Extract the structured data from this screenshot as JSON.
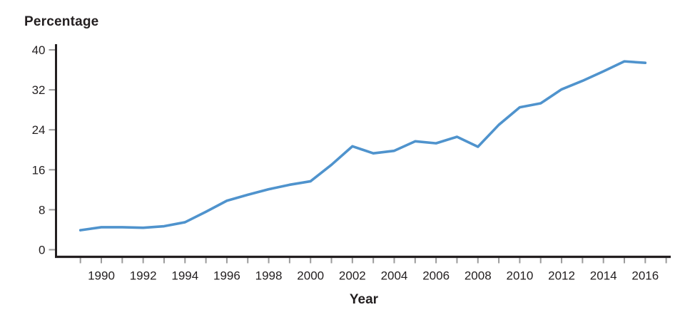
{
  "chart": {
    "title": "Percentage",
    "xlabel": "Year"
  },
  "chart_data": {
    "type": "line",
    "title": "Percentage",
    "xlabel": "Year",
    "ylabel": "Percentage",
    "x": [
      1989,
      1990,
      1991,
      1992,
      1993,
      1994,
      1995,
      1996,
      1997,
      1998,
      1999,
      2000,
      2001,
      2002,
      2003,
      2004,
      2005,
      2006,
      2007,
      2008,
      2009,
      2010,
      2011,
      2012,
      2013,
      2014,
      2015,
      2016
    ],
    "values": [
      3.9,
      4.5,
      4.5,
      4.4,
      4.7,
      5.5,
      7.6,
      9.8,
      11.0,
      12.1,
      13.0,
      13.7,
      17.0,
      20.7,
      19.3,
      19.8,
      21.7,
      21.3,
      22.6,
      20.6,
      25.0,
      28.5,
      29.3,
      32.1,
      33.8,
      35.7,
      37.7,
      37.4
    ],
    "ylim": [
      0,
      40
    ],
    "yticks": [
      0,
      8,
      16,
      24,
      32,
      40
    ],
    "xticks_labeled": [
      1990,
      1992,
      1994,
      1996,
      1998,
      2000,
      2002,
      2004,
      2006,
      2008,
      2010,
      2012,
      2014,
      2016
    ],
    "xticks_minor": [
      1989,
      1990,
      1991,
      1992,
      1993,
      1994,
      1995,
      1996,
      1997,
      1998,
      1999,
      2000,
      2001,
      2002,
      2003,
      2004,
      2005,
      2006,
      2007,
      2008,
      2009,
      2010,
      2011,
      2012,
      2013,
      2014,
      2015,
      2016,
      2017
    ],
    "grid": "off",
    "legend": "none",
    "line_color": "#4f93cd",
    "axis_color": "#231f20",
    "tick_color": "#9b9b9b"
  }
}
